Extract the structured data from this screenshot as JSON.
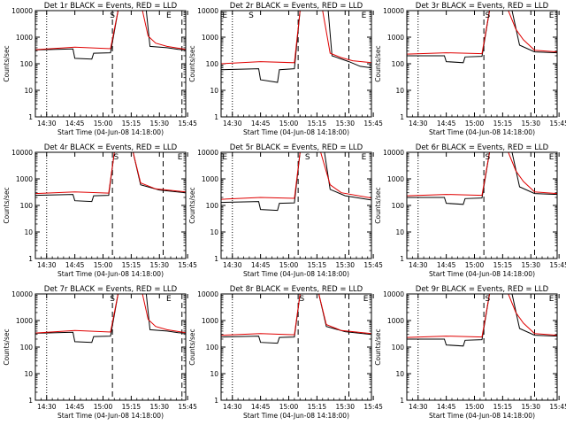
{
  "chart_data": {
    "type": "line",
    "layout": "3x3 grid",
    "y_scale": "log",
    "ylabel": "Counts/sec",
    "ylim": [
      1,
      10000
    ],
    "y_ticks": [
      "1",
      "10",
      "100",
      "1000",
      "10000"
    ],
    "xlabel": "Start Time (04-Jun-08 14:18:00)",
    "x_ticks": [
      "14:30",
      "14:45",
      "15:00",
      "15:15",
      "15:30",
      "15:45"
    ],
    "x_range_minutes": [
      -6,
      74
    ],
    "colors": {
      "events": "#000000",
      "lld": "#e00000"
    },
    "panels": [
      {
        "title": "Det 1r BLACK = Events, RED = LLD",
        "markers": [
          {
            "label": "S",
            "t": 60
          },
          {
            "label": "E",
            "t": 63
          },
          {
            "label": "E",
            "t": 62
          }
        ],
        "dotted_t": [
          0,
          75
        ],
        "dashed_t": [
          35,
          72
        ],
        "event_markers": [
          {
            "label": "S",
            "t": 35
          },
          {
            "label": "E",
            "t": 65
          }
        ],
        "events": [
          [
            -6,
            330
          ],
          [
            14,
            360
          ],
          [
            15,
            160
          ],
          [
            24,
            150
          ],
          [
            25,
            250
          ],
          [
            34,
            260
          ],
          [
            38,
            10000
          ],
          [
            53,
            10000
          ],
          [
            55,
            450
          ],
          [
            64,
            400
          ],
          [
            70,
            350
          ],
          [
            74,
            330
          ]
        ],
        "lld": [
          [
            -6,
            340
          ],
          [
            15,
            420
          ],
          [
            34,
            370
          ],
          [
            38,
            10000
          ],
          [
            51,
            10000
          ],
          [
            54,
            1100
          ],
          [
            58,
            600
          ],
          [
            64,
            450
          ],
          [
            74,
            350
          ]
        ]
      },
      {
        "title": "Det 2r BLACK = Events, RED = LLD",
        "dotted_t": [
          0,
          75
        ],
        "dashed_t": [
          35,
          62
        ],
        "event_markers": [
          {
            "label": "E",
            "t": -4
          },
          {
            "label": "S",
            "t": 10
          },
          {
            "label": "E",
            "t": 70
          }
        ],
        "events": [
          [
            -6,
            60
          ],
          [
            14,
            65
          ],
          [
            15,
            25
          ],
          [
            24,
            20
          ],
          [
            25,
            60
          ],
          [
            33,
            65
          ],
          [
            36,
            10000
          ],
          [
            51,
            10000
          ],
          [
            53,
            200
          ],
          [
            62,
            120
          ],
          [
            68,
            80
          ],
          [
            74,
            70
          ]
        ],
        "lld": [
          [
            -6,
            100
          ],
          [
            15,
            120
          ],
          [
            33,
            110
          ],
          [
            36,
            10000
          ],
          [
            48,
            10000
          ],
          [
            52,
            250
          ],
          [
            58,
            170
          ],
          [
            64,
            130
          ],
          [
            74,
            110
          ]
        ]
      },
      {
        "title": "Det 3r BLACK = Events, RED = LLD",
        "dotted_t": [
          0,
          75
        ],
        "dashed_t": [
          35,
          62
        ],
        "event_markers": [
          {
            "label": "S",
            "t": 37
          },
          {
            "label": "E",
            "t": 71
          }
        ],
        "events": [
          [
            -6,
            200
          ],
          [
            14,
            200
          ],
          [
            15,
            120
          ],
          [
            24,
            110
          ],
          [
            25,
            180
          ],
          [
            34,
            190
          ],
          [
            38,
            10000
          ],
          [
            50,
            10000
          ],
          [
            54,
            500
          ],
          [
            62,
            280
          ],
          [
            74,
            260
          ]
        ],
        "lld": [
          [
            -6,
            230
          ],
          [
            15,
            260
          ],
          [
            34,
            240
          ],
          [
            38,
            10000
          ],
          [
            48,
            10000
          ],
          [
            52,
            2000
          ],
          [
            56,
            800
          ],
          [
            62,
            320
          ],
          [
            74,
            280
          ]
        ]
      },
      {
        "title": "Det 4r BLACK = Events, RED = LLD",
        "dotted_t": [
          0,
          75
        ],
        "dashed_t": [
          35,
          62
        ],
        "event_markers": [
          {
            "label": "S",
            "t": 37
          },
          {
            "label": "E",
            "t": 71
          }
        ],
        "events": [
          [
            -6,
            240
          ],
          [
            14,
            260
          ],
          [
            15,
            150
          ],
          [
            24,
            140
          ],
          [
            25,
            230
          ],
          [
            33,
            240
          ],
          [
            36,
            10000
          ],
          [
            46,
            10000
          ],
          [
            50,
            600
          ],
          [
            60,
            380
          ],
          [
            74,
            300
          ]
        ],
        "lld": [
          [
            -6,
            280
          ],
          [
            15,
            320
          ],
          [
            33,
            290
          ],
          [
            36,
            10000
          ],
          [
            46,
            10000
          ],
          [
            50,
            700
          ],
          [
            58,
            420
          ],
          [
            74,
            320
          ]
        ]
      },
      {
        "title": "Det 5r BLACK = Events, RED = LLD",
        "dotted_t": [
          0,
          75
        ],
        "dashed_t": [
          35,
          62
        ],
        "event_markers": [
          {
            "label": "E",
            "t": -4
          },
          {
            "label": "S",
            "t": 40
          },
          {
            "label": "E",
            "t": 70
          }
        ],
        "events": [
          [
            -6,
            130
          ],
          [
            14,
            140
          ],
          [
            15,
            70
          ],
          [
            24,
            65
          ],
          [
            25,
            120
          ],
          [
            33,
            125
          ],
          [
            36,
            10000
          ],
          [
            49,
            10000
          ],
          [
            52,
            400
          ],
          [
            60,
            230
          ],
          [
            74,
            160
          ]
        ],
        "lld": [
          [
            -6,
            170
          ],
          [
            15,
            200
          ],
          [
            33,
            185
          ],
          [
            36,
            10000
          ],
          [
            47,
            10000
          ],
          [
            52,
            600
          ],
          [
            58,
            300
          ],
          [
            74,
            190
          ]
        ]
      },
      {
        "title": "Det 6r BLACK = Events, RED = LLD",
        "dotted_t": [
          0,
          75
        ],
        "dashed_t": [
          35,
          62
        ],
        "event_markers": [
          {
            "label": "S",
            "t": 37
          },
          {
            "label": "E",
            "t": 71
          }
        ],
        "events": [
          [
            -6,
            200
          ],
          [
            14,
            200
          ],
          [
            15,
            120
          ],
          [
            24,
            110
          ],
          [
            25,
            180
          ],
          [
            34,
            190
          ],
          [
            38,
            10000
          ],
          [
            50,
            10000
          ],
          [
            54,
            500
          ],
          [
            62,
            280
          ],
          [
            74,
            260
          ]
        ],
        "lld": [
          [
            -6,
            230
          ],
          [
            15,
            260
          ],
          [
            34,
            240
          ],
          [
            38,
            10000
          ],
          [
            48,
            10000
          ],
          [
            52,
            2000
          ],
          [
            56,
            800
          ],
          [
            62,
            320
          ],
          [
            74,
            280
          ]
        ]
      },
      {
        "title": "Det 7r BLACK = Events, RED = LLD",
        "dotted_t": [
          0,
          75
        ],
        "dashed_t": [
          35,
          72
        ],
        "event_markers": [
          {
            "label": "S",
            "t": 35
          },
          {
            "label": "E",
            "t": 65
          }
        ],
        "events": [
          [
            -6,
            330
          ],
          [
            14,
            360
          ],
          [
            15,
            160
          ],
          [
            24,
            150
          ],
          [
            25,
            250
          ],
          [
            34,
            260
          ],
          [
            38,
            10000
          ],
          [
            53,
            10000
          ],
          [
            55,
            450
          ],
          [
            64,
            400
          ],
          [
            70,
            350
          ],
          [
            74,
            330
          ]
        ],
        "lld": [
          [
            -6,
            340
          ],
          [
            15,
            420
          ],
          [
            34,
            370
          ],
          [
            38,
            10000
          ],
          [
            51,
            10000
          ],
          [
            54,
            1100
          ],
          [
            58,
            600
          ],
          [
            64,
            450
          ],
          [
            74,
            350
          ]
        ]
      },
      {
        "title": "Det 8r BLACK = Events, RED = LLD",
        "dotted_t": [
          0,
          75
        ],
        "dashed_t": [
          35,
          62
        ],
        "event_markers": [
          {
            "label": "S",
            "t": 37
          },
          {
            "label": "E",
            "t": 71
          }
        ],
        "events": [
          [
            -6,
            240
          ],
          [
            14,
            260
          ],
          [
            15,
            150
          ],
          [
            24,
            140
          ],
          [
            25,
            230
          ],
          [
            33,
            240
          ],
          [
            36,
            10000
          ],
          [
            46,
            10000
          ],
          [
            50,
            600
          ],
          [
            60,
            380
          ],
          [
            74,
            300
          ]
        ],
        "lld": [
          [
            -6,
            280
          ],
          [
            15,
            320
          ],
          [
            33,
            290
          ],
          [
            36,
            10000
          ],
          [
            46,
            10000
          ],
          [
            50,
            700
          ],
          [
            58,
            420
          ],
          [
            74,
            320
          ]
        ]
      },
      {
        "title": "Det 9r BLACK = Events, RED = LLD",
        "dotted_t": [
          0,
          75
        ],
        "dashed_t": [
          35,
          62
        ],
        "event_markers": [
          {
            "label": "S",
            "t": 37
          },
          {
            "label": "E",
            "t": 71
          }
        ],
        "events": [
          [
            -6,
            200
          ],
          [
            14,
            200
          ],
          [
            15,
            120
          ],
          [
            24,
            110
          ],
          [
            25,
            180
          ],
          [
            34,
            190
          ],
          [
            38,
            10000
          ],
          [
            50,
            10000
          ],
          [
            54,
            500
          ],
          [
            62,
            280
          ],
          [
            74,
            260
          ]
        ],
        "lld": [
          [
            -6,
            230
          ],
          [
            15,
            260
          ],
          [
            34,
            240
          ],
          [
            38,
            10000
          ],
          [
            48,
            10000
          ],
          [
            52,
            2000
          ],
          [
            56,
            800
          ],
          [
            62,
            320
          ],
          [
            74,
            280
          ]
        ]
      }
    ]
  }
}
